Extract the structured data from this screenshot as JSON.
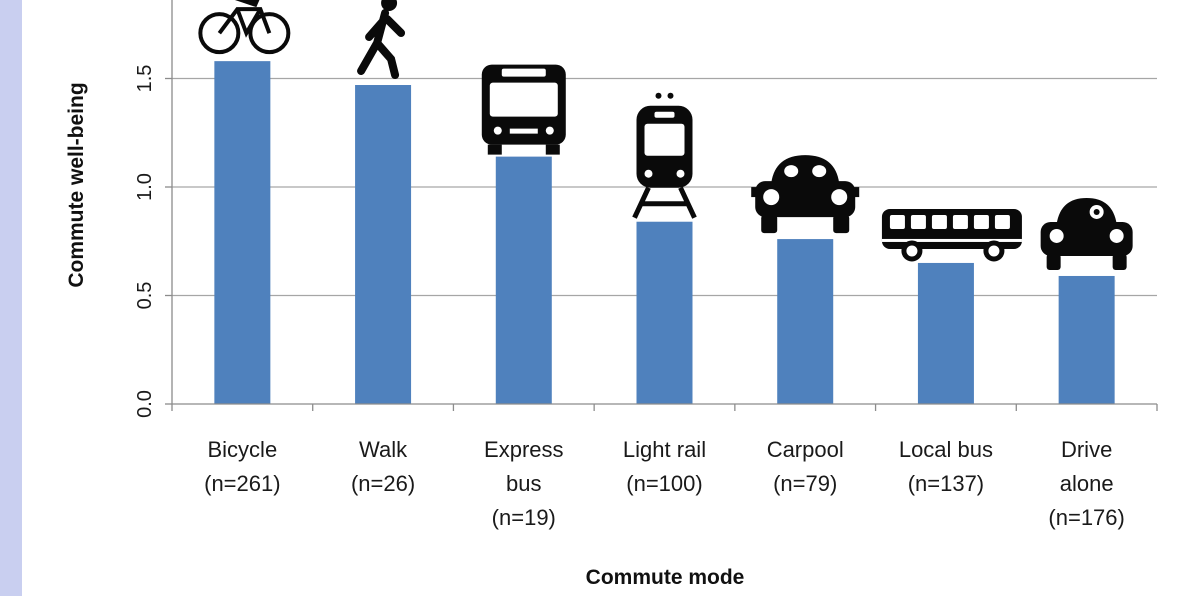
{
  "colors": {
    "bar": "#4f81bd",
    "grid": "#a6a6a6",
    "axis": "#8c8c8c",
    "icon": "#0a0a0a",
    "frame_border": "#c9cff0"
  },
  "chart_data": {
    "type": "bar",
    "title": "",
    "xlabel": "Commute mode",
    "ylabel": "Commute well-being",
    "ylim": [
      0,
      1.8
    ],
    "yticks": [
      "0.0",
      "0.5",
      "1.0",
      "1.5"
    ],
    "grid": true,
    "categories": [
      [
        "Bicycle",
        "(n=261)"
      ],
      [
        "Walk",
        "(n=26)"
      ],
      [
        "Express",
        "bus",
        "(n=19)"
      ],
      [
        "Light rail",
        "(n=100)"
      ],
      [
        "Carpool",
        "(n=79)"
      ],
      [
        "Local bus",
        "(n=137)"
      ],
      [
        "Drive",
        "alone",
        "(n=176)"
      ]
    ],
    "values": [
      1.58,
      1.47,
      1.14,
      0.84,
      0.76,
      0.65,
      0.59
    ],
    "icons": [
      "bicycle-icon",
      "pedestrian-icon",
      "bus-front-icon",
      "train-front-icon",
      "car-front-icon",
      "bus-side-icon",
      "car-driver-icon"
    ]
  }
}
